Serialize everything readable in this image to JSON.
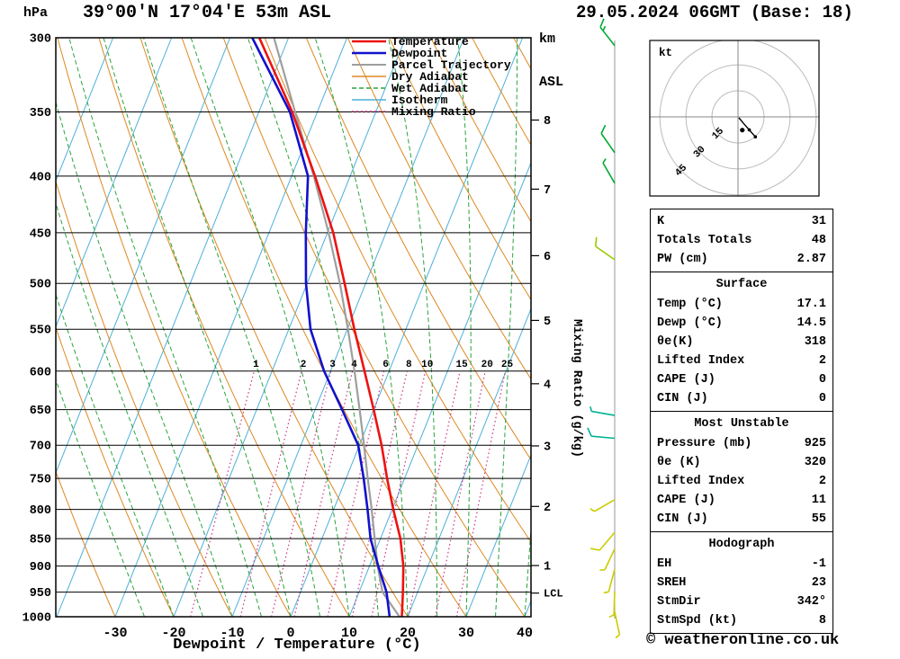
{
  "header": {
    "pressure_unit": "hPa",
    "title": "39°00'N 17°04'E 53m ASL",
    "altitude_unit_top": "km",
    "altitude_unit_bottom": "ASL",
    "datetime": "29.05.2024 06GMT (Base: 18)"
  },
  "axes": {
    "xlabel": "Dewpoint / Temperature (°C)",
    "right_axis_label": "Mixing Ratio (g/kg)",
    "lcl_label": "LCL"
  },
  "legend": [
    {
      "label": "Temperature",
      "key": "temperature"
    },
    {
      "label": "Dewpoint",
      "key": "dewpoint"
    },
    {
      "label": "Parcel Trajectory",
      "key": "parcel"
    },
    {
      "label": "Dry Adiabat",
      "key": "dry_adiabat"
    },
    {
      "label": "Wet Adiabat",
      "key": "wet_adiabat"
    },
    {
      "label": "Isotherm",
      "key": "isotherm"
    },
    {
      "label": "Mixing Ratio",
      "key": "mixing_ratio"
    }
  ],
  "colors": {
    "temperature": "#ee1111",
    "dewpoint": "#1111cc",
    "parcel": "#9e9e9e",
    "dry_adiabat": "#dd8822",
    "wet_adiabat": "#2aa43c",
    "isotherm": "#4fb0d8",
    "mixing_ratio": "#cc3388",
    "grid": "#000000",
    "barb_line": "#999999"
  },
  "chart_data": {
    "type": "skewt_log_p",
    "pressure_axis_hpa": [
      300,
      350,
      400,
      450,
      500,
      550,
      600,
      650,
      700,
      750,
      800,
      850,
      900,
      950,
      1000
    ],
    "temp_axis_c": [
      -30,
      -20,
      -10,
      0,
      10,
      20,
      30,
      40
    ],
    "km_ticks": [
      {
        "km": 8,
        "pressure_hpa": 356
      },
      {
        "km": 7,
        "pressure_hpa": 411
      },
      {
        "km": 6,
        "pressure_hpa": 472
      },
      {
        "km": 5,
        "pressure_hpa": 540
      },
      {
        "km": 4,
        "pressure_hpa": 616
      },
      {
        "km": 3,
        "pressure_hpa": 701
      },
      {
        "km": 2,
        "pressure_hpa": 795
      },
      {
        "km": 1,
        "pressure_hpa": 899
      }
    ],
    "lcl_pressure_hpa": 952,
    "mixing_ratio_lines_g_kg": [
      1,
      2,
      3,
      4,
      6,
      8,
      10,
      15,
      20,
      25
    ],
    "isotherms_c": {
      "min": -90,
      "max": 40,
      "step": 10
    },
    "dry_adiabats_theta_c": {
      "min": -30,
      "max": 120,
      "step": 10
    },
    "wet_adiabats_thetaw_c": {
      "min": -25,
      "max": 40,
      "step": 5
    },
    "sounding": {
      "pressure_hpa": [
        1000,
        950,
        900,
        850,
        800,
        750,
        700,
        650,
        600,
        550,
        500,
        450,
        400,
        350,
        300
      ],
      "temperature_c": [
        19.0,
        17.5,
        15.8,
        13.4,
        10.2,
        7.0,
        3.8,
        0.0,
        -4.2,
        -8.8,
        -13.6,
        -19.0,
        -26.0,
        -34.3,
        -45.0
      ],
      "dewpoint_c": [
        16.9,
        14.7,
        11.5,
        8.3,
        5.8,
        3.0,
        -0.2,
        -5.4,
        -11.1,
        -16.3,
        -20.2,
        -23.7,
        -27.2,
        -34.7,
        -46.2
      ],
      "parcel_c": [
        18.6,
        14.0,
        11.4,
        9.0,
        6.5,
        3.7,
        0.8,
        -2.4,
        -5.9,
        -9.9,
        -14.4,
        -19.8,
        -26.2,
        -33.8,
        -42.5
      ]
    }
  },
  "wind_barbs": [
    {
      "pressure_hpa": 305,
      "speed_kt": 15,
      "staff_angle_deg": -38,
      "color": "#00aa33"
    },
    {
      "pressure_hpa": 381,
      "speed_kt": 10,
      "staff_angle_deg": -35,
      "color": "#00aa33"
    },
    {
      "pressure_hpa": 406,
      "speed_kt": 5,
      "staff_angle_deg": -30,
      "color": "#00aa33"
    },
    {
      "pressure_hpa": 476,
      "speed_kt": 10,
      "staff_angle_deg": -55,
      "color": "#99cc00"
    },
    {
      "pressure_hpa": 658,
      "speed_kt": 5,
      "staff_angle_deg": -80,
      "color": "#00b295"
    },
    {
      "pressure_hpa": 690,
      "speed_kt": 10,
      "staff_angle_deg": -85,
      "color": "#00b295"
    },
    {
      "pressure_hpa": 784,
      "speed_kt": 5,
      "staff_angle_deg": -120,
      "color": "#cccc00"
    },
    {
      "pressure_hpa": 839,
      "speed_kt": 10,
      "staff_angle_deg": -140,
      "color": "#cccc00"
    },
    {
      "pressure_hpa": 868,
      "speed_kt": 5,
      "staff_angle_deg": -155,
      "color": "#cccc00"
    },
    {
      "pressure_hpa": 906,
      "speed_kt": 5,
      "staff_angle_deg": -165,
      "color": "#cccc00"
    },
    {
      "pressure_hpa": 949,
      "speed_kt": 5,
      "staff_angle_deg": -178,
      "color": "#cccc00"
    },
    {
      "pressure_hpa": 990,
      "speed_kt": 5,
      "staff_angle_deg": -192,
      "color": "#cccc00"
    }
  ],
  "hodograph": {
    "unit_label": "kt",
    "rings_kt": [
      15,
      30,
      45
    ],
    "trace_kt": [
      [
        0.5,
        -0.5
      ],
      [
        3.0,
        -3.5
      ],
      [
        6.5,
        -7.5
      ],
      [
        10.0,
        -11.5
      ]
    ],
    "storm_dir_deg": 342,
    "storm_speed_kt": 8
  },
  "table": {
    "sections": [
      {
        "title": "",
        "rows": [
          [
            "K",
            "31"
          ],
          [
            "Totals Totals",
            "48"
          ],
          [
            "PW (cm)",
            "2.87"
          ]
        ]
      },
      {
        "title": "Surface",
        "rows": [
          [
            "Temp (°C)",
            "17.1"
          ],
          [
            "Dewp (°C)",
            "14.5"
          ],
          [
            "θe(K)",
            "318"
          ],
          [
            "Lifted Index",
            "2"
          ],
          [
            "CAPE (J)",
            "0"
          ],
          [
            "CIN (J)",
            "0"
          ]
        ]
      },
      {
        "title": "Most Unstable",
        "rows": [
          [
            "Pressure (mb)",
            "925"
          ],
          [
            "θe (K)",
            "320"
          ],
          [
            "Lifted Index",
            "2"
          ],
          [
            "CAPE (J)",
            "11"
          ],
          [
            "CIN (J)",
            "55"
          ]
        ]
      },
      {
        "title": "Hodograph",
        "rows": [
          [
            "EH",
            "-1"
          ],
          [
            "SREH",
            "23"
          ],
          [
            "StmDir",
            "342°"
          ],
          [
            "StmSpd (kt)",
            "8"
          ]
        ]
      }
    ]
  },
  "footer": {
    "copyright": "© weatheronline.co.uk"
  }
}
